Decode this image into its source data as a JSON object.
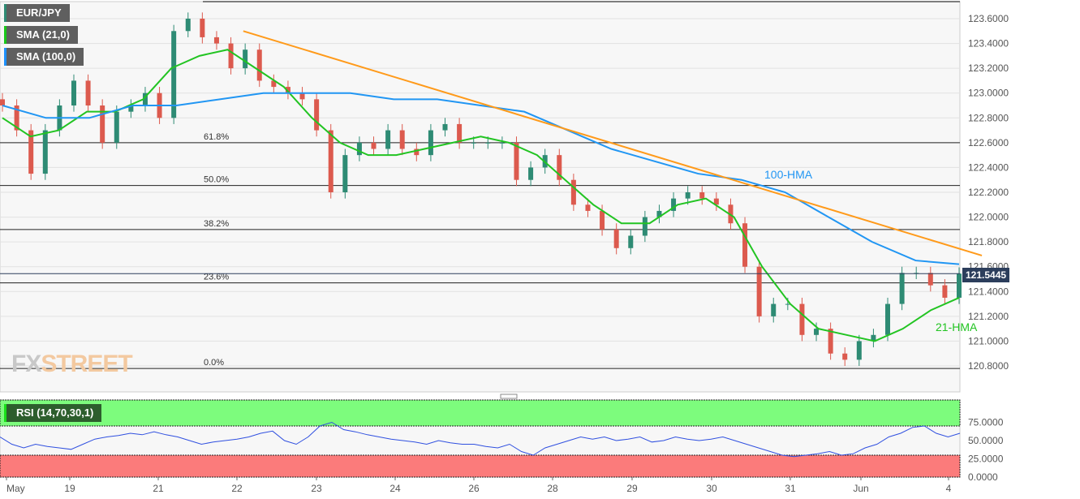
{
  "legend": [
    {
      "label": "EUR/JPY",
      "color": "#2e8b74"
    },
    {
      "label": "SMA (21,0)",
      "color": "#19c819"
    },
    {
      "label": "SMA (100,0)",
      "color": "#1e90ff"
    }
  ],
  "rsi_legend": "RSI (14,70,30,1)",
  "logo": "FXSTREET",
  "current_price": "121.5445",
  "colors": {
    "up": "#2e8b74",
    "down": "#dc5a4e",
    "sma21": "#22c422",
    "sma100": "#2196f3",
    "trend": "#ff9a1a",
    "rsi": "#3050e0",
    "overbought": "#7dfc7d",
    "oversold": "#fb7b7b",
    "price_tag": "#2c3e5c"
  },
  "chart_data": {
    "type": "candlestick",
    "x_ticks": [
      "May",
      "19",
      "21",
      "22",
      "23",
      "24",
      "26",
      "28",
      "29",
      "30",
      "31",
      "Jun",
      "4"
    ],
    "ylim": [
      120.74,
      123.74
    ],
    "y_ticks": [
      "123.6000",
      "123.4000",
      "123.2000",
      "123.0000",
      "122.8000",
      "122.6000",
      "122.4000",
      "122.2000",
      "122.0000",
      "121.8000",
      "121.6000",
      "121.4000",
      "121.2000",
      "121.0000",
      "120.8000"
    ],
    "closes": [
      122.9,
      122.7,
      122.35,
      122.7,
      122.9,
      123.1,
      122.9,
      122.6,
      122.85,
      122.9,
      123.0,
      122.8,
      123.5,
      123.6,
      123.45,
      123.4,
      123.2,
      123.35,
      123.1,
      123.05,
      123.0,
      122.95,
      122.7,
      122.2,
      122.5,
      122.6,
      122.55,
      122.7,
      122.55,
      122.5,
      122.7,
      122.75,
      122.6,
      122.6,
      122.6,
      122.6,
      122.3,
      122.4,
      122.5,
      122.3,
      122.1,
      122.05,
      121.9,
      121.75,
      121.85,
      122.0,
      122.05,
      122.15,
      122.2,
      122.15,
      122.1,
      121.95,
      121.6,
      121.2,
      121.3,
      121.3,
      121.05,
      121.1,
      120.9,
      120.85,
      121.0,
      121.05,
      121.3,
      121.55,
      121.55,
      121.45,
      121.35,
      121.5445
    ],
    "series": [
      {
        "name": "21-HMA",
        "values": [
          122.8,
          122.65,
          122.7,
          122.85,
          122.85,
          122.95,
          123.2,
          123.3,
          123.35,
          123.2,
          123.05,
          122.8,
          122.6,
          122.5,
          122.5,
          122.55,
          122.6,
          122.65,
          122.6,
          122.5,
          122.3,
          122.1,
          121.95,
          121.95,
          122.1,
          122.15,
          122.0,
          121.6,
          121.3,
          121.1,
          121.05,
          121.0,
          121.1,
          121.25,
          121.35
        ]
      },
      {
        "name": "100-HMA",
        "values": [
          122.9,
          122.8,
          122.8,
          122.9,
          122.9,
          122.95,
          123.0,
          123.0,
          123.0,
          122.95,
          122.95,
          122.9,
          122.85,
          122.7,
          122.55,
          122.45,
          122.35,
          122.3,
          122.2,
          122.0,
          121.8,
          121.65,
          121.62
        ]
      }
    ],
    "trendline": {
      "from": [
        3.08,
        123.5
      ],
      "to": [
        12.38,
        121.69
      ]
    },
    "fib_levels": [
      {
        "label": "61.8%",
        "value": 122.6
      },
      {
        "label": "50.0%",
        "value": 122.255
      },
      {
        "label": "38.2%",
        "value": 121.9
      },
      {
        "label": "23.6%",
        "value": 121.47
      },
      {
        "label": "0.0%",
        "value": 120.78
      }
    ],
    "rsi": {
      "ylim": [
        0,
        100
      ],
      "overbought": 70,
      "oversold": 30,
      "y_ticks": [
        "75.0000",
        "50.0000",
        "25.0000",
        "0.0000"
      ],
      "values": [
        55,
        45,
        40,
        45,
        42,
        40,
        38,
        45,
        52,
        55,
        57,
        60,
        58,
        62,
        58,
        55,
        50,
        45,
        48,
        50,
        52,
        55,
        60,
        63,
        50,
        45,
        55,
        70,
        75,
        65,
        62,
        58,
        55,
        52,
        50,
        48,
        45,
        50,
        47,
        45,
        45,
        42,
        40,
        45,
        35,
        30,
        40,
        45,
        50,
        55,
        52,
        55,
        50,
        52,
        55,
        48,
        50,
        55,
        52,
        50,
        52,
        55,
        50,
        45,
        40,
        35,
        30,
        28,
        30,
        32,
        35,
        30,
        32,
        40,
        45,
        55,
        60,
        68,
        70,
        60,
        55,
        60
      ]
    }
  }
}
